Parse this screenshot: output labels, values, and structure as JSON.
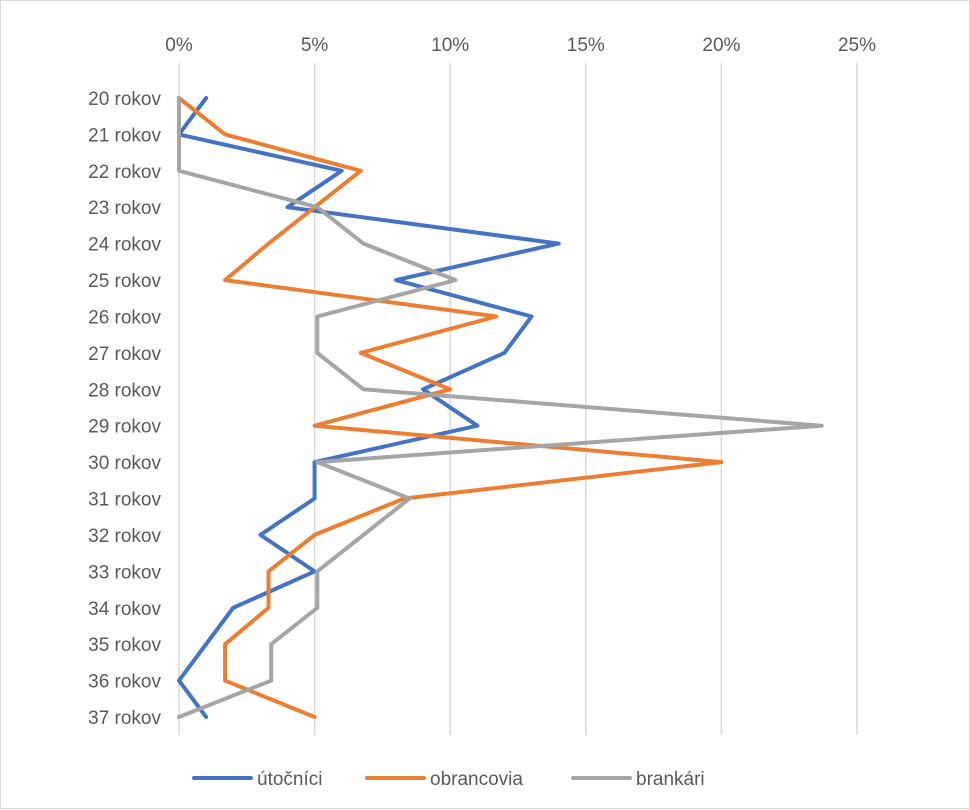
{
  "chart_data": {
    "type": "line",
    "orientation": "vertical-category-axis",
    "categories": [
      "20 rokov",
      "21 rokov",
      "22 rokov",
      "23 rokov",
      "24 rokov",
      "25 rokov",
      "26 rokov",
      "27 rokov",
      "28 rokov",
      "29 rokov",
      "30 rokov",
      "31 rokov",
      "32 rokov",
      "33 rokov",
      "34 rokov",
      "35 rokov",
      "36 rokov",
      "37 rokov"
    ],
    "value_axis": {
      "ticks": [
        0,
        5,
        10,
        15,
        20,
        25
      ],
      "tick_labels": [
        "0%",
        "5%",
        "10%",
        "15%",
        "20%",
        "25%"
      ],
      "range": [
        0,
        25
      ],
      "position": "top",
      "gridlines": true
    },
    "series": [
      {
        "name": "útočníci",
        "color": "#4472C4",
        "values": [
          1.0,
          0.0,
          6.0,
          4.0,
          14.0,
          8.0,
          13.0,
          12.0,
          9.0,
          11.0,
          5.0,
          5.0,
          3.0,
          5.0,
          2.0,
          1.0,
          0.0,
          1.0
        ]
      },
      {
        "name": "obrancovia",
        "color": "#ED7D31",
        "values": [
          0.0,
          1.7,
          6.7,
          5.0,
          3.3,
          1.7,
          11.7,
          6.7,
          10.0,
          5.0,
          20.0,
          8.3,
          5.0,
          3.3,
          3.3,
          1.7,
          1.7,
          5.0
        ]
      },
      {
        "name": "brankári",
        "color": "#A5A5A5",
        "values": [
          0.0,
          0.0,
          0.0,
          5.1,
          6.8,
          10.2,
          5.1,
          5.1,
          6.8,
          23.7,
          5.1,
          8.5,
          6.8,
          5.1,
          5.1,
          3.4,
          3.4,
          0.0
        ]
      }
    ],
    "title": "",
    "xlabel": "",
    "ylabel": "",
    "legend_position": "bottom"
  }
}
